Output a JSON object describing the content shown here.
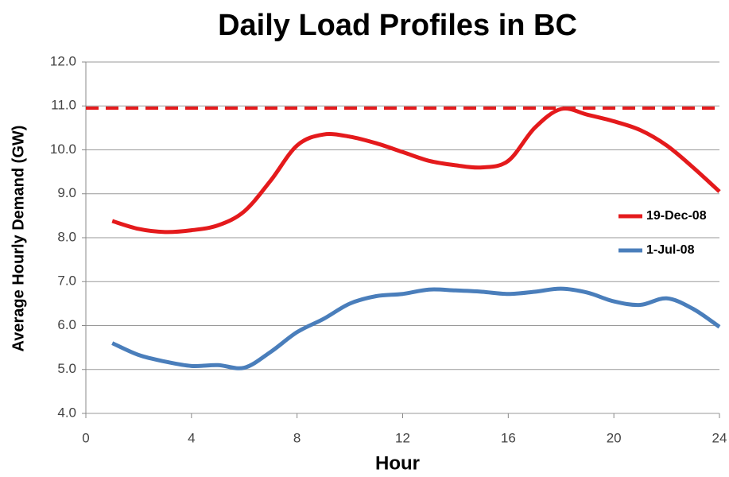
{
  "chart_data": {
    "type": "line",
    "title": "Daily Load Profiles in BC",
    "x_label": "Hour",
    "y_label": "Average Hourly Demand (GW)",
    "x": [
      1,
      2,
      3,
      4,
      5,
      6,
      7,
      8,
      9,
      10,
      11,
      12,
      13,
      14,
      15,
      16,
      17,
      18,
      19,
      20,
      21,
      22,
      23,
      24
    ],
    "series": [
      {
        "name": "19-Dec-08",
        "color": "#e41a1c",
        "values": [
          8.38,
          8.2,
          8.13,
          8.17,
          8.28,
          8.6,
          9.3,
          10.1,
          10.35,
          10.3,
          10.15,
          9.95,
          9.75,
          9.65,
          9.6,
          9.75,
          10.5,
          10.93,
          10.8,
          10.65,
          10.45,
          10.1,
          9.6,
          9.05
        ]
      },
      {
        "name": "1-Jul-08",
        "color": "#4a7ebb",
        "values": [
          5.6,
          5.33,
          5.18,
          5.08,
          5.1,
          5.04,
          5.4,
          5.85,
          6.15,
          6.5,
          6.67,
          6.72,
          6.82,
          6.8,
          6.77,
          6.72,
          6.77,
          6.84,
          6.75,
          6.55,
          6.47,
          6.62,
          6.38,
          5.97
        ]
      }
    ],
    "reference_line": {
      "value": 10.95,
      "color": "#e41a1c",
      "dashed": true
    },
    "xlim": [
      0,
      24
    ],
    "xticks": [
      0,
      4,
      8,
      12,
      16,
      20,
      24
    ],
    "ylim": [
      4,
      12
    ],
    "yticks": [
      {
        "value": 4,
        "label": "4.0"
      },
      {
        "value": 5,
        "label": "5.0"
      },
      {
        "value": 6,
        "label": "6.0"
      },
      {
        "value": 7,
        "label": "7.0"
      },
      {
        "value": 8,
        "label": "8.0"
      },
      {
        "value": 9,
        "label": "9.0"
      },
      {
        "value": 10,
        "label": "10.0"
      },
      {
        "value": 11,
        "label": "11.0"
      },
      {
        "value": 12,
        "label": "12.0"
      }
    ],
    "grid": true,
    "legend": "right"
  }
}
